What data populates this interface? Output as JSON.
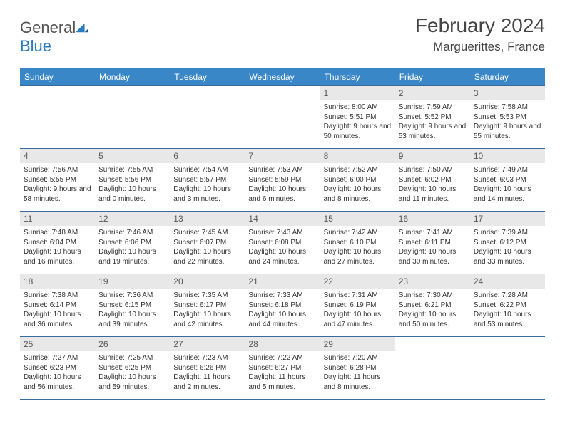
{
  "logo": {
    "part1": "General",
    "part2": "Blue"
  },
  "title": "February 2024",
  "location": "Marguerittes, France",
  "colors": {
    "header_bg": "#3a87c8",
    "header_text": "#ffffff",
    "daynum_bg": "#e8e8e8",
    "border": "#3a6a9a",
    "body_text": "#333333",
    "title_text": "#444444"
  },
  "weekdays": [
    "Sunday",
    "Monday",
    "Tuesday",
    "Wednesday",
    "Thursday",
    "Friday",
    "Saturday"
  ],
  "weeks": [
    [
      {
        "empty": true
      },
      {
        "empty": true
      },
      {
        "empty": true
      },
      {
        "empty": true
      },
      {
        "day": "1",
        "sunrise": "Sunrise: 8:00 AM",
        "sunset": "Sunset: 5:51 PM",
        "daylight": "Daylight: 9 hours and 50 minutes."
      },
      {
        "day": "2",
        "sunrise": "Sunrise: 7:59 AM",
        "sunset": "Sunset: 5:52 PM",
        "daylight": "Daylight: 9 hours and 53 minutes."
      },
      {
        "day": "3",
        "sunrise": "Sunrise: 7:58 AM",
        "sunset": "Sunset: 5:53 PM",
        "daylight": "Daylight: 9 hours and 55 minutes."
      }
    ],
    [
      {
        "day": "4",
        "sunrise": "Sunrise: 7:56 AM",
        "sunset": "Sunset: 5:55 PM",
        "daylight": "Daylight: 9 hours and 58 minutes."
      },
      {
        "day": "5",
        "sunrise": "Sunrise: 7:55 AM",
        "sunset": "Sunset: 5:56 PM",
        "daylight": "Daylight: 10 hours and 0 minutes."
      },
      {
        "day": "6",
        "sunrise": "Sunrise: 7:54 AM",
        "sunset": "Sunset: 5:57 PM",
        "daylight": "Daylight: 10 hours and 3 minutes."
      },
      {
        "day": "7",
        "sunrise": "Sunrise: 7:53 AM",
        "sunset": "Sunset: 5:59 PM",
        "daylight": "Daylight: 10 hours and 6 minutes."
      },
      {
        "day": "8",
        "sunrise": "Sunrise: 7:52 AM",
        "sunset": "Sunset: 6:00 PM",
        "daylight": "Daylight: 10 hours and 8 minutes."
      },
      {
        "day": "9",
        "sunrise": "Sunrise: 7:50 AM",
        "sunset": "Sunset: 6:02 PM",
        "daylight": "Daylight: 10 hours and 11 minutes."
      },
      {
        "day": "10",
        "sunrise": "Sunrise: 7:49 AM",
        "sunset": "Sunset: 6:03 PM",
        "daylight": "Daylight: 10 hours and 14 minutes."
      }
    ],
    [
      {
        "day": "11",
        "sunrise": "Sunrise: 7:48 AM",
        "sunset": "Sunset: 6:04 PM",
        "daylight": "Daylight: 10 hours and 16 minutes."
      },
      {
        "day": "12",
        "sunrise": "Sunrise: 7:46 AM",
        "sunset": "Sunset: 6:06 PM",
        "daylight": "Daylight: 10 hours and 19 minutes."
      },
      {
        "day": "13",
        "sunrise": "Sunrise: 7:45 AM",
        "sunset": "Sunset: 6:07 PM",
        "daylight": "Daylight: 10 hours and 22 minutes."
      },
      {
        "day": "14",
        "sunrise": "Sunrise: 7:43 AM",
        "sunset": "Sunset: 6:08 PM",
        "daylight": "Daylight: 10 hours and 24 minutes."
      },
      {
        "day": "15",
        "sunrise": "Sunrise: 7:42 AM",
        "sunset": "Sunset: 6:10 PM",
        "daylight": "Daylight: 10 hours and 27 minutes."
      },
      {
        "day": "16",
        "sunrise": "Sunrise: 7:41 AM",
        "sunset": "Sunset: 6:11 PM",
        "daylight": "Daylight: 10 hours and 30 minutes."
      },
      {
        "day": "17",
        "sunrise": "Sunrise: 7:39 AM",
        "sunset": "Sunset: 6:12 PM",
        "daylight": "Daylight: 10 hours and 33 minutes."
      }
    ],
    [
      {
        "day": "18",
        "sunrise": "Sunrise: 7:38 AM",
        "sunset": "Sunset: 6:14 PM",
        "daylight": "Daylight: 10 hours and 36 minutes."
      },
      {
        "day": "19",
        "sunrise": "Sunrise: 7:36 AM",
        "sunset": "Sunset: 6:15 PM",
        "daylight": "Daylight: 10 hours and 39 minutes."
      },
      {
        "day": "20",
        "sunrise": "Sunrise: 7:35 AM",
        "sunset": "Sunset: 6:17 PM",
        "daylight": "Daylight: 10 hours and 42 minutes."
      },
      {
        "day": "21",
        "sunrise": "Sunrise: 7:33 AM",
        "sunset": "Sunset: 6:18 PM",
        "daylight": "Daylight: 10 hours and 44 minutes."
      },
      {
        "day": "22",
        "sunrise": "Sunrise: 7:31 AM",
        "sunset": "Sunset: 6:19 PM",
        "daylight": "Daylight: 10 hours and 47 minutes."
      },
      {
        "day": "23",
        "sunrise": "Sunrise: 7:30 AM",
        "sunset": "Sunset: 6:21 PM",
        "daylight": "Daylight: 10 hours and 50 minutes."
      },
      {
        "day": "24",
        "sunrise": "Sunrise: 7:28 AM",
        "sunset": "Sunset: 6:22 PM",
        "daylight": "Daylight: 10 hours and 53 minutes."
      }
    ],
    [
      {
        "day": "25",
        "sunrise": "Sunrise: 7:27 AM",
        "sunset": "Sunset: 6:23 PM",
        "daylight": "Daylight: 10 hours and 56 minutes."
      },
      {
        "day": "26",
        "sunrise": "Sunrise: 7:25 AM",
        "sunset": "Sunset: 6:25 PM",
        "daylight": "Daylight: 10 hours and 59 minutes."
      },
      {
        "day": "27",
        "sunrise": "Sunrise: 7:23 AM",
        "sunset": "Sunset: 6:26 PM",
        "daylight": "Daylight: 11 hours and 2 minutes."
      },
      {
        "day": "28",
        "sunrise": "Sunrise: 7:22 AM",
        "sunset": "Sunset: 6:27 PM",
        "daylight": "Daylight: 11 hours and 5 minutes."
      },
      {
        "day": "29",
        "sunrise": "Sunrise: 7:20 AM",
        "sunset": "Sunset: 6:28 PM",
        "daylight": "Daylight: 11 hours and 8 minutes."
      },
      {
        "empty": true
      },
      {
        "empty": true
      }
    ]
  ]
}
